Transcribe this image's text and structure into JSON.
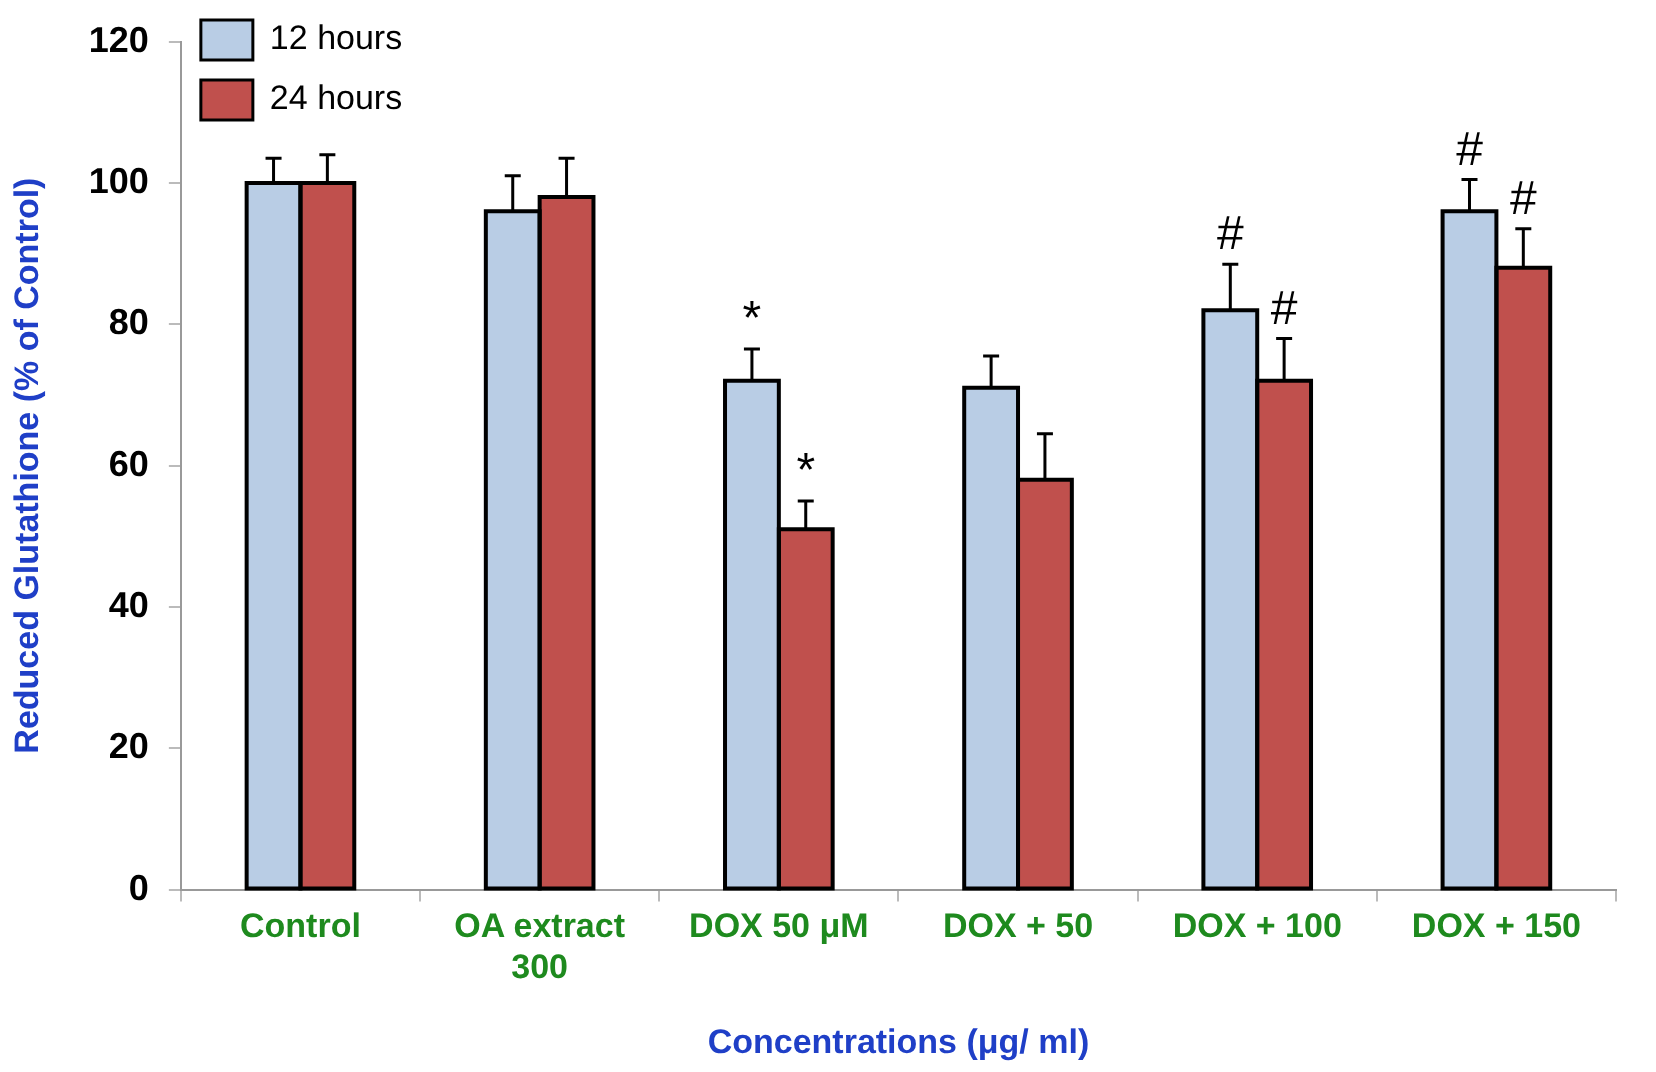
{
  "chart_data": {
    "type": "bar",
    "xlabel": "Concentrations (μg/ ml)",
    "ylabel": "Reduced Glutathione (% of Control)",
    "categories": [
      "Control",
      "OA extract 300",
      "DOX 50 μM",
      "DOX + 50",
      "DOX + 100",
      "DOX + 150"
    ],
    "series": [
      {
        "name": "12 hours",
        "color": "#b9cde5",
        "values": [
          100,
          96,
          72,
          71,
          82,
          96
        ],
        "errors": [
          3.5,
          5,
          4.5,
          4.5,
          6.5,
          4.5
        ]
      },
      {
        "name": "24 hours",
        "color": "#c0504d",
        "values": [
          100,
          98,
          51,
          58,
          72,
          88
        ],
        "errors": [
          4,
          5.5,
          4,
          6.5,
          6,
          5.5
        ]
      }
    ],
    "ylim": [
      0,
      120
    ],
    "yticks": [
      0,
      20,
      40,
      60,
      80,
      100,
      120
    ],
    "legend": "top left",
    "annotations": [
      {
        "text": "*",
        "x": "DOX 50 μM",
        "y": 72
      },
      {
        "text": "*",
        "x": "DOX 50 μM",
        "y": 51
      },
      {
        "text": "#",
        "x": "DOX + 100",
        "y": 82
      },
      {
        "text": "#",
        "x": "DOX + 100",
        "y": 72
      },
      {
        "text": "#",
        "x": "DOX + 150",
        "y": 96
      },
      {
        "text": "#",
        "x": "DOX + 150",
        "y": 88
      }
    ]
  }
}
